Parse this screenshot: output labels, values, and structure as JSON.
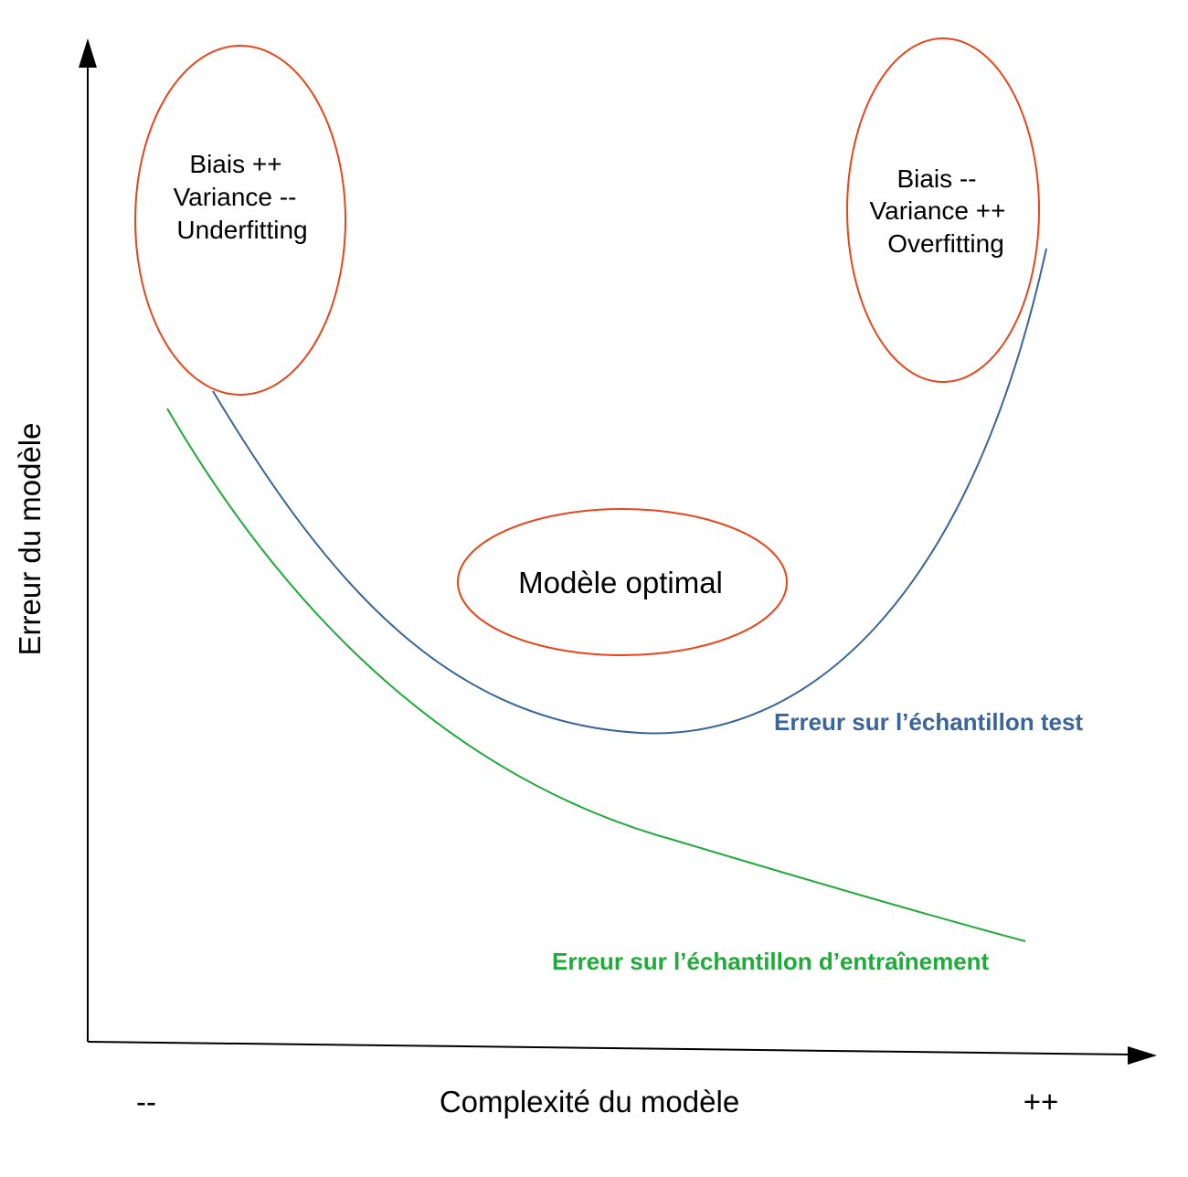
{
  "colors": {
    "axis": "#000000",
    "ellipse": "#e8461a",
    "test_curve": "#3a6598",
    "train_curve": "#1faa3a"
  },
  "axes": {
    "y_label": "Erreur du modèle",
    "x_label": "Complexité du modèle",
    "x_min_label": "--",
    "x_max_label": "++"
  },
  "regions": {
    "underfitting": {
      "line1": "Biais ++",
      "line2": "Variance --",
      "line3": "Underfitting"
    },
    "overfitting": {
      "line1": "Biais --",
      "line2": "Variance ++",
      "line3": "Overfitting"
    },
    "optimal": {
      "label": "Modèle optimal"
    }
  },
  "curves": {
    "test": {
      "label": "Erreur sur l’échantillon test"
    },
    "train": {
      "label": "Erreur sur l’échantillon d’entraînement"
    }
  }
}
